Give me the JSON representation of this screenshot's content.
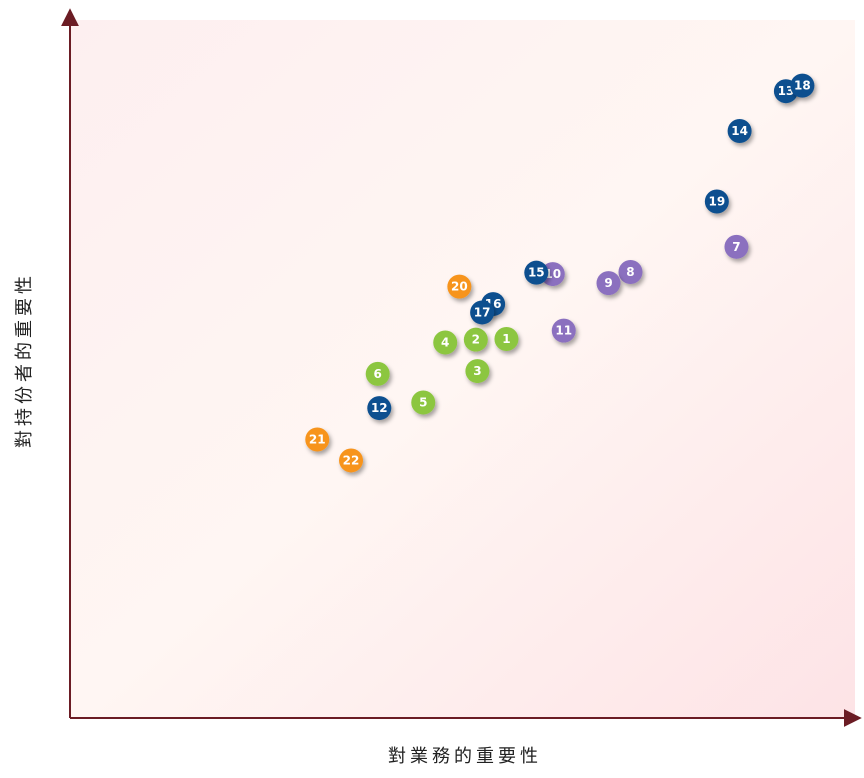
{
  "chart_data": {
    "type": "scatter",
    "title": "",
    "xlabel": "對業務的重要性",
    "ylabel": "對持份者的重要性",
    "xlim": [
      0,
      100
    ],
    "ylim": [
      0,
      100
    ],
    "grid": false,
    "axis_color": "#6b1c24",
    "background_gradient": [
      "#fdeff0",
      "#fff6f3",
      "#fde3e6"
    ],
    "groups": [
      {
        "color": "#8cc63f"
      },
      {
        "color": "#8b6fbf"
      },
      {
        "color": "#0b4f8f"
      },
      {
        "color": "#f7941d"
      }
    ],
    "points": [
      {
        "label": "1",
        "x": 55.6,
        "y": 54.3,
        "group": 0
      },
      {
        "label": "2",
        "x": 51.7,
        "y": 54.2,
        "group": 0
      },
      {
        "label": "3",
        "x": 51.9,
        "y": 49.7,
        "group": 0
      },
      {
        "label": "4",
        "x": 47.8,
        "y": 53.8,
        "group": 0
      },
      {
        "label": "5",
        "x": 45.0,
        "y": 45.2,
        "group": 0
      },
      {
        "label": "6",
        "x": 39.2,
        "y": 49.3,
        "group": 0
      },
      {
        "label": "7",
        "x": 84.9,
        "y": 67.5,
        "group": 1
      },
      {
        "label": "8",
        "x": 71.4,
        "y": 63.9,
        "group": 1
      },
      {
        "label": "9",
        "x": 68.6,
        "y": 62.3,
        "group": 1
      },
      {
        "label": "10",
        "x": 61.5,
        "y": 63.6,
        "group": 1
      },
      {
        "label": "11",
        "x": 62.9,
        "y": 55.5,
        "group": 1
      },
      {
        "label": "12",
        "x": 39.4,
        "y": 44.4,
        "group": 2
      },
      {
        "label": "13",
        "x": 91.2,
        "y": 89.8,
        "group": 2
      },
      {
        "label": "14",
        "x": 85.3,
        "y": 84.1,
        "group": 2
      },
      {
        "label": "15",
        "x": 59.4,
        "y": 63.8,
        "group": 2
      },
      {
        "label": "16",
        "x": 53.9,
        "y": 59.3,
        "group": 2
      },
      {
        "label": "17",
        "x": 52.5,
        "y": 58.1,
        "group": 2
      },
      {
        "label": "18",
        "x": 93.3,
        "y": 90.6,
        "group": 2
      },
      {
        "label": "19",
        "x": 82.4,
        "y": 74.0,
        "group": 2
      },
      {
        "label": "20",
        "x": 49.6,
        "y": 61.8,
        "group": 3
      },
      {
        "label": "21",
        "x": 31.5,
        "y": 39.9,
        "group": 3
      },
      {
        "label": "22",
        "x": 35.8,
        "y": 36.9,
        "group": 3
      }
    ]
  }
}
